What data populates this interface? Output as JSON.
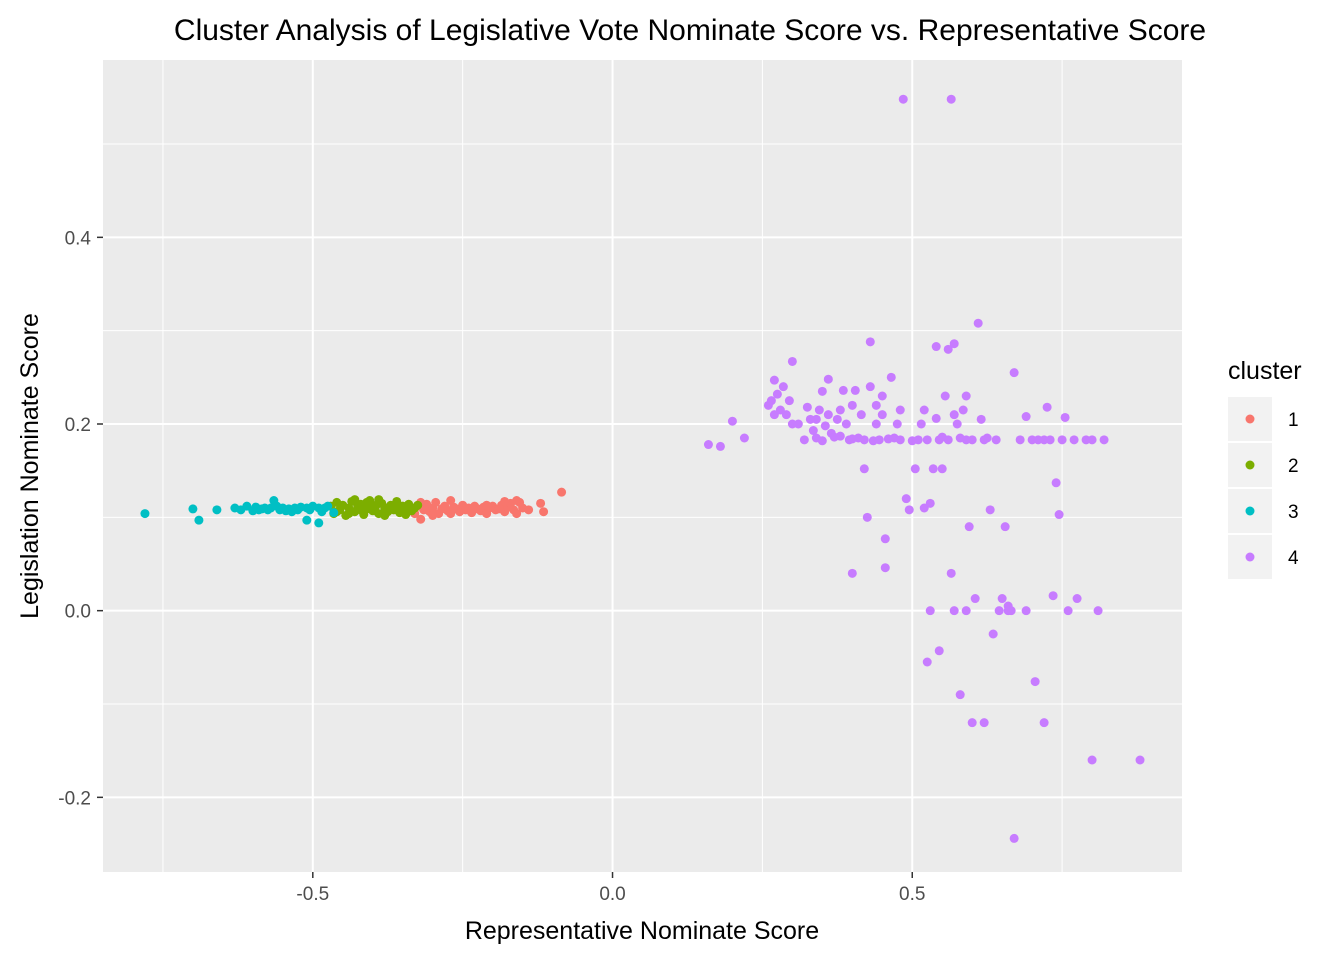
{
  "chart_data": {
    "type": "scatter",
    "title": "Cluster Analysis of Legislative Vote Nominate Score vs. Representative Score",
    "xlabel": "Representative Nominate Score",
    "ylabel": "Legislation Nominate Score",
    "xlim": [
      -0.85,
      0.95
    ],
    "ylim": [
      -0.28,
      0.59
    ],
    "x_ticks": [
      -0.5,
      0.0,
      0.5
    ],
    "x_tick_labels": [
      "-0.5",
      "0.0",
      "0.5"
    ],
    "y_ticks": [
      -0.2,
      0.0,
      0.2,
      0.4
    ],
    "y_tick_labels": [
      "-0.2",
      "0.0",
      "0.2",
      "0.4"
    ],
    "grid": true,
    "legend": {
      "title": "cluster",
      "position": "right"
    },
    "series": [
      {
        "name": "1",
        "color": "#F8766D",
        "points": [
          [
            -0.33,
            0.104
          ],
          [
            -0.325,
            0.112
          ],
          [
            -0.32,
            0.098
          ],
          [
            -0.315,
            0.108
          ],
          [
            -0.31,
            0.114
          ],
          [
            -0.305,
            0.106
          ],
          [
            -0.3,
            0.11
          ],
          [
            -0.295,
            0.116
          ],
          [
            -0.29,
            0.104
          ],
          [
            -0.285,
            0.109
          ],
          [
            -0.28,
            0.112
          ],
          [
            -0.275,
            0.107
          ],
          [
            -0.27,
            0.104
          ],
          [
            -0.265,
            0.111
          ],
          [
            -0.26,
            0.109
          ],
          [
            -0.255,
            0.106
          ],
          [
            -0.25,
            0.113
          ],
          [
            -0.245,
            0.108
          ],
          [
            -0.24,
            0.11
          ],
          [
            -0.235,
            0.105
          ],
          [
            -0.23,
            0.112
          ],
          [
            -0.225,
            0.109
          ],
          [
            -0.22,
            0.107
          ],
          [
            -0.215,
            0.111
          ],
          [
            -0.21,
            0.104
          ],
          [
            -0.205,
            0.11
          ],
          [
            -0.2,
            0.112
          ],
          [
            -0.195,
            0.108
          ],
          [
            -0.19,
            0.109
          ],
          [
            -0.185,
            0.113
          ],
          [
            -0.18,
            0.106
          ],
          [
            -0.175,
            0.111
          ],
          [
            -0.17,
            0.115
          ],
          [
            -0.165,
            0.108
          ],
          [
            -0.16,
            0.104
          ],
          [
            -0.155,
            0.116
          ],
          [
            -0.15,
            0.11
          ],
          [
            -0.14,
            0.108
          ],
          [
            -0.12,
            0.115
          ],
          [
            -0.115,
            0.106
          ],
          [
            -0.085,
            0.127
          ],
          [
            -0.32,
            0.116
          ],
          [
            -0.3,
            0.102
          ],
          [
            -0.27,
            0.118
          ],
          [
            -0.21,
            0.113
          ],
          [
            -0.18,
            0.117
          ],
          [
            -0.16,
            0.118
          ]
        ]
      },
      {
        "name": "2",
        "color": "#7CAE00",
        "points": [
          [
            -0.47,
            0.112
          ],
          [
            -0.465,
            0.104
          ],
          [
            -0.46,
            0.116
          ],
          [
            -0.455,
            0.108
          ],
          [
            -0.45,
            0.113
          ],
          [
            -0.445,
            0.102
          ],
          [
            -0.44,
            0.11
          ],
          [
            -0.435,
            0.117
          ],
          [
            -0.43,
            0.106
          ],
          [
            -0.425,
            0.111
          ],
          [
            -0.42,
            0.114
          ],
          [
            -0.415,
            0.103
          ],
          [
            -0.41,
            0.109
          ],
          [
            -0.405,
            0.118
          ],
          [
            -0.4,
            0.107
          ],
          [
            -0.395,
            0.112
          ],
          [
            -0.39,
            0.104
          ],
          [
            -0.385,
            0.115
          ],
          [
            -0.38,
            0.11
          ],
          [
            -0.375,
            0.106
          ],
          [
            -0.37,
            0.113
          ],
          [
            -0.365,
            0.108
          ],
          [
            -0.36,
            0.111
          ],
          [
            -0.355,
            0.105
          ],
          [
            -0.35,
            0.112
          ],
          [
            -0.345,
            0.109
          ],
          [
            -0.34,
            0.114
          ],
          [
            -0.335,
            0.107
          ],
          [
            -0.33,
            0.11
          ],
          [
            -0.325,
            0.113
          ],
          [
            -0.46,
            0.106
          ],
          [
            -0.44,
            0.104
          ],
          [
            -0.42,
            0.108
          ],
          [
            -0.4,
            0.113
          ],
          [
            -0.38,
            0.102
          ],
          [
            -0.36,
            0.117
          ],
          [
            -0.345,
            0.103
          ],
          [
            -0.43,
            0.119
          ],
          [
            -0.41,
            0.116
          ],
          [
            -0.39,
            0.119
          ]
        ]
      },
      {
        "name": "3",
        "color": "#00BFC4",
        "points": [
          [
            -0.78,
            0.104
          ],
          [
            -0.7,
            0.109
          ],
          [
            -0.69,
            0.097
          ],
          [
            -0.66,
            0.108
          ],
          [
            -0.63,
            0.11
          ],
          [
            -0.62,
            0.108
          ],
          [
            -0.61,
            0.112
          ],
          [
            -0.6,
            0.107
          ],
          [
            -0.595,
            0.111
          ],
          [
            -0.59,
            0.108
          ],
          [
            -0.585,
            0.109
          ],
          [
            -0.58,
            0.11
          ],
          [
            -0.575,
            0.108
          ],
          [
            -0.57,
            0.11
          ],
          [
            -0.565,
            0.118
          ],
          [
            -0.56,
            0.112
          ],
          [
            -0.555,
            0.108
          ],
          [
            -0.55,
            0.11
          ],
          [
            -0.545,
            0.107
          ],
          [
            -0.54,
            0.109
          ],
          [
            -0.535,
            0.106
          ],
          [
            -0.53,
            0.11
          ],
          [
            -0.525,
            0.108
          ],
          [
            -0.52,
            0.111
          ],
          [
            -0.51,
            0.11
          ],
          [
            -0.505,
            0.108
          ],
          [
            -0.5,
            0.112
          ],
          [
            -0.49,
            0.11
          ],
          [
            -0.485,
            0.106
          ],
          [
            -0.48,
            0.11
          ],
          [
            -0.475,
            0.112
          ],
          [
            -0.51,
            0.097
          ],
          [
            -0.49,
            0.094
          ],
          [
            -0.465,
            0.105
          ]
        ]
      },
      {
        "name": "4",
        "color": "#C77CFF",
        "points": [
          [
            0.16,
            0.178
          ],
          [
            0.18,
            0.176
          ],
          [
            0.2,
            0.203
          ],
          [
            0.22,
            0.185
          ],
          [
            0.26,
            0.22
          ],
          [
            0.265,
            0.225
          ],
          [
            0.27,
            0.247
          ],
          [
            0.27,
            0.21
          ],
          [
            0.275,
            0.232
          ],
          [
            0.28,
            0.215
          ],
          [
            0.285,
            0.24
          ],
          [
            0.29,
            0.21
          ],
          [
            0.295,
            0.225
          ],
          [
            0.3,
            0.2
          ],
          [
            0.3,
            0.267
          ],
          [
            0.31,
            0.2
          ],
          [
            0.32,
            0.183
          ],
          [
            0.325,
            0.218
          ],
          [
            0.33,
            0.205
          ],
          [
            0.335,
            0.193
          ],
          [
            0.34,
            0.185
          ],
          [
            0.34,
            0.205
          ],
          [
            0.345,
            0.215
          ],
          [
            0.35,
            0.235
          ],
          [
            0.35,
            0.182
          ],
          [
            0.355,
            0.198
          ],
          [
            0.36,
            0.248
          ],
          [
            0.36,
            0.21
          ],
          [
            0.365,
            0.19
          ],
          [
            0.37,
            0.186
          ],
          [
            0.375,
            0.205
          ],
          [
            0.38,
            0.215
          ],
          [
            0.38,
            0.187
          ],
          [
            0.385,
            0.236
          ],
          [
            0.39,
            0.2
          ],
          [
            0.395,
            0.183
          ],
          [
            0.4,
            0.22
          ],
          [
            0.4,
            0.184
          ],
          [
            0.405,
            0.236
          ],
          [
            0.41,
            0.185
          ],
          [
            0.415,
            0.21
          ],
          [
            0.42,
            0.183
          ],
          [
            0.42,
            0.152
          ],
          [
            0.425,
            0.1
          ],
          [
            0.43,
            0.288
          ],
          [
            0.43,
            0.24
          ],
          [
            0.435,
            0.182
          ],
          [
            0.44,
            0.2
          ],
          [
            0.44,
            0.22
          ],
          [
            0.445,
            0.183
          ],
          [
            0.45,
            0.21
          ],
          [
            0.45,
            0.23
          ],
          [
            0.455,
            0.077
          ],
          [
            0.455,
            0.046
          ],
          [
            0.46,
            0.184
          ],
          [
            0.465,
            0.25
          ],
          [
            0.47,
            0.185
          ],
          [
            0.475,
            0.2
          ],
          [
            0.48,
            0.215
          ],
          [
            0.48,
            0.183
          ],
          [
            0.485,
            0.548
          ],
          [
            0.49,
            0.12
          ],
          [
            0.495,
            0.108
          ],
          [
            0.5,
            0.182
          ],
          [
            0.505,
            0.152
          ],
          [
            0.51,
            0.183
          ],
          [
            0.515,
            0.2
          ],
          [
            0.52,
            0.215
          ],
          [
            0.52,
            0.11
          ],
          [
            0.525,
            0.183
          ],
          [
            0.53,
            0.115
          ],
          [
            0.53,
            0.0
          ],
          [
            0.535,
            0.152
          ],
          [
            0.54,
            0.206
          ],
          [
            0.54,
            0.283
          ],
          [
            0.545,
            0.183
          ],
          [
            0.55,
            0.152
          ],
          [
            0.55,
            0.186
          ],
          [
            0.555,
            0.23
          ],
          [
            0.56,
            0.28
          ],
          [
            0.56,
            0.183
          ],
          [
            0.565,
            0.04
          ],
          [
            0.565,
            0.548
          ],
          [
            0.57,
            0.286
          ],
          [
            0.57,
            0.21
          ],
          [
            0.575,
            0.2
          ],
          [
            0.58,
            0.185
          ],
          [
            0.585,
            0.215
          ],
          [
            0.59,
            0.23
          ],
          [
            0.59,
            0.183
          ],
          [
            0.595,
            0.09
          ],
          [
            0.6,
            0.183
          ],
          [
            0.605,
            0.013
          ],
          [
            0.61,
            0.308
          ],
          [
            0.615,
            0.205
          ],
          [
            0.62,
            0.183
          ],
          [
            0.625,
            0.185
          ],
          [
            0.63,
            0.108
          ],
          [
            0.635,
            -0.025
          ],
          [
            0.64,
            0.183
          ],
          [
            0.645,
            0.0
          ],
          [
            0.65,
            0.013
          ],
          [
            0.655,
            0.09
          ],
          [
            0.66,
            0.005
          ],
          [
            0.665,
            0.0
          ],
          [
            0.67,
            0.255
          ],
          [
            0.68,
            0.183
          ],
          [
            0.69,
            0.0
          ],
          [
            0.69,
            0.208
          ],
          [
            0.7,
            0.183
          ],
          [
            0.705,
            -0.076
          ],
          [
            0.71,
            0.183
          ],
          [
            0.72,
            0.183
          ],
          [
            0.725,
            0.218
          ],
          [
            0.73,
            0.183
          ],
          [
            0.735,
            0.016
          ],
          [
            0.74,
            0.137
          ],
          [
            0.745,
            0.103
          ],
          [
            0.75,
            0.183
          ],
          [
            0.755,
            0.207
          ],
          [
            0.76,
            0.0
          ],
          [
            0.77,
            0.183
          ],
          [
            0.775,
            0.013
          ],
          [
            0.79,
            0.183
          ],
          [
            0.8,
            0.183
          ],
          [
            0.81,
            0.0
          ],
          [
            0.82,
            0.183
          ],
          [
            0.525,
            -0.055
          ],
          [
            0.545,
            -0.043
          ],
          [
            0.58,
            -0.09
          ],
          [
            0.6,
            -0.12
          ],
          [
            0.62,
            -0.12
          ],
          [
            0.72,
            -0.12
          ],
          [
            0.67,
            -0.244
          ],
          [
            0.8,
            -0.16
          ],
          [
            0.88,
            -0.16
          ],
          [
            0.4,
            0.04
          ],
          [
            0.57,
            0.0
          ],
          [
            0.59,
            0.0
          ],
          [
            0.66,
            0.0
          ]
        ]
      }
    ]
  }
}
